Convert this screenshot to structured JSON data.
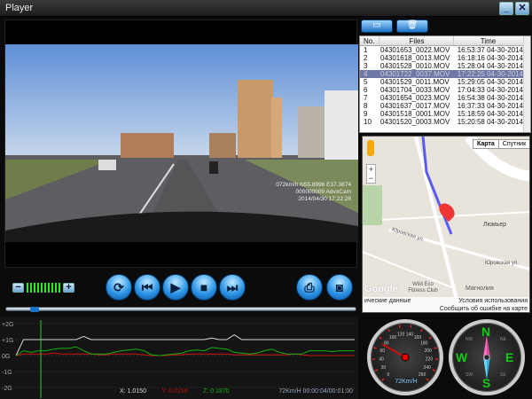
{
  "window": {
    "title": "Player",
    "minimize": "_",
    "close": "✕"
  },
  "video": {
    "overlay_line1": "072km/h N55.8996 E37.3874",
    "overlay_line2": "000000009 AdvoCam",
    "overlay_line3": "2014/04/30 17:22:28"
  },
  "controls": {
    "volume_minus": "−",
    "volume_plus": "+",
    "volume_level": 10,
    "volume_max": 10,
    "progress_percent": 7,
    "buttons": [
      {
        "name": "repeat",
        "icon": "repeat-icon"
      },
      {
        "name": "previous",
        "icon": "skip-back-icon"
      },
      {
        "name": "play",
        "icon": "play-icon"
      },
      {
        "name": "stop",
        "icon": "stop-icon"
      },
      {
        "name": "next",
        "icon": "skip-forward-icon"
      },
      {
        "name": "print",
        "icon": "printer-icon"
      },
      {
        "name": "snapshot",
        "icon": "camera-icon"
      }
    ]
  },
  "files": {
    "toolbar": [
      {
        "icon": "folder-icon"
      },
      {
        "icon": "trash-icon"
      }
    ],
    "headers": [
      "No.",
      "Files",
      "Time"
    ],
    "rows": [
      {
        "no": "1",
        "file": "04301653_0022.MOV",
        "time": "16:53:37 04-30-2014"
      },
      {
        "no": "2",
        "file": "04301618_0013.MOV",
        "time": "16:18:16 04-30-2014"
      },
      {
        "no": "3",
        "file": "04301528_0010.MOV",
        "time": "15:28:04 04-30-2014"
      },
      {
        "no": "4",
        "file": "04301722_0037.MOV",
        "time": "17:22:25 04-30-2014",
        "selected": true
      },
      {
        "no": "5",
        "file": "04301529_0011.MOV",
        "time": "15:29:05 04-30-2014"
      },
      {
        "no": "6",
        "file": "04301704_0033.MOV",
        "time": "17:04:33 04-30-2014"
      },
      {
        "no": "7",
        "file": "04301654_0023.MOV",
        "time": "16:54:38 04-30-2014"
      },
      {
        "no": "8",
        "file": "04301637_0017.MOV",
        "time": "16:37:33 04-30-2014"
      },
      {
        "no": "9",
        "file": "04301518_0001.MOV",
        "time": "15:18:59 04-30-2014"
      },
      {
        "no": "10",
        "file": "04301520_0003.MOV",
        "time": "15:20:58 04-30-2014"
      }
    ]
  },
  "map": {
    "type_map": "Карта",
    "type_satellite": "Спутник",
    "zoom_in": "+",
    "zoom_out": "−",
    "labels": {
      "poi1": "Люмьер",
      "street1": "Юровская ул.",
      "street2": "Юровская ул.",
      "poi2": "Wild Eco Fitness Club",
      "poi3": "Магнолия"
    },
    "footer": {
      "logo": "Google",
      "data": "ические данные",
      "terms": "Условия использования",
      "report": "Сообщить об ошибке на карте"
    }
  },
  "gsensor": {
    "y_ticks": [
      "+2G",
      "+1G",
      "0G",
      "-1G",
      "-2G"
    ],
    "x_label": "X: 1.0150",
    "y_label": "Y: 0.0150",
    "z_label": "Z: 0.1870",
    "status": "72Km/H 00:00:04/00:01:00",
    "colors": {
      "x": "#d8d8d8",
      "y": "#d01010",
      "z": "#10b010",
      "cursor": "#20d020"
    },
    "chart_data": {
      "type": "line",
      "ylim": [
        -2,
        2
      ],
      "series": [
        {
          "name": "X",
          "values": [
            0,
            1,
            1,
            1,
            1,
            1,
            1,
            1,
            1,
            1.2,
            1,
            1,
            1,
            1,
            1,
            1,
            1,
            1,
            1,
            1,
            1,
            1,
            1,
            1,
            1,
            1,
            1.1,
            1,
            1,
            1.3,
            1,
            1,
            1,
            1,
            1,
            1,
            1,
            1,
            1,
            1,
            1,
            1,
            1,
            1,
            1,
            1
          ]
        },
        {
          "name": "Y",
          "values": [
            0,
            0.1,
            0.1,
            0.1,
            0.1,
            0.15,
            0.1,
            0.1,
            0.1,
            0.1,
            0.1,
            0.05,
            0.05,
            0.1,
            0.1,
            0.1,
            0.1,
            0.05,
            0,
            0,
            0,
            0.05,
            0.05,
            0.1,
            0.1,
            0.1,
            0.1,
            0.1,
            0.1,
            0.05,
            0.05,
            0.05,
            0.05,
            0.05,
            0.05,
            0.05,
            0.05,
            0.1,
            0.05,
            0,
            0,
            0,
            0,
            0,
            0,
            0
          ]
        },
        {
          "name": "Z",
          "values": [
            0,
            0.3,
            0.2,
            0.3,
            0.3,
            0.4,
            0.45,
            0.45,
            0.55,
            0.3,
            0.1,
            0.1,
            0.1,
            0.2,
            0.3,
            0.35,
            0.4,
            0.3,
            0.05,
            0,
            0.05,
            0.1,
            0.15,
            0.3,
            0.35,
            0.3,
            0.5,
            0.45,
            0.4,
            0.2,
            0.15,
            0.1,
            0.15,
            0.3,
            0.4,
            0.2,
            0.1,
            0.1,
            0.1,
            0.3,
            0.3,
            0.3,
            0.25,
            0.3,
            0.3,
            0.3
          ]
        }
      ]
    }
  },
  "speedometer": {
    "ticks": [
      "0",
      "20",
      "40",
      "60",
      "80",
      "100",
      "120",
      "140",
      "160",
      "180",
      "200",
      "220",
      "240",
      "260"
    ],
    "speed": 72,
    "readout": "72Km/H"
  },
  "compass": {
    "N": "N",
    "E": "E",
    "S": "S",
    "W": "W",
    "NW": "NW",
    "NE": "NE",
    "SE": "SE",
    "SW": "SW"
  }
}
